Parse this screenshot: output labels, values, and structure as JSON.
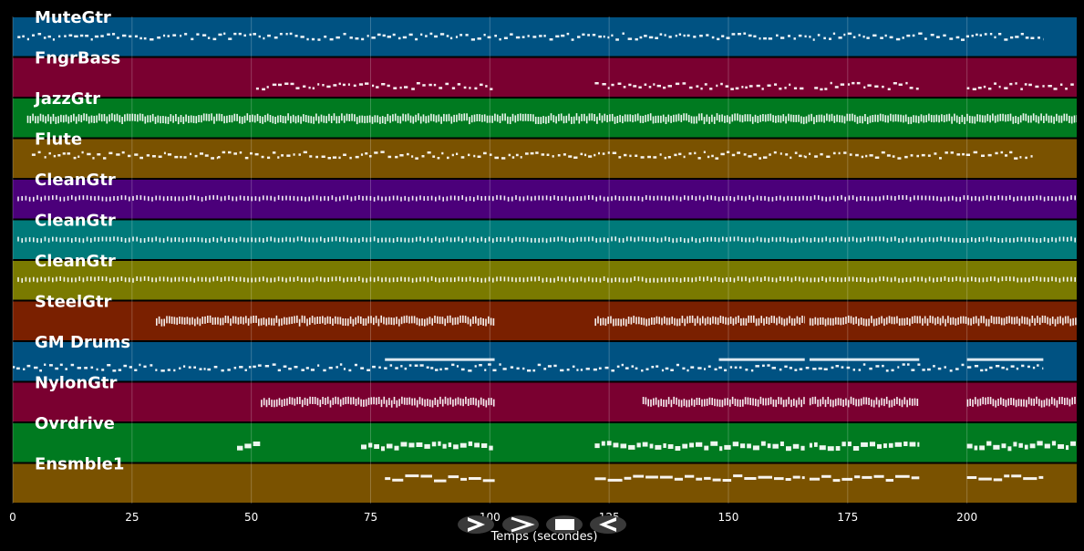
{
  "chart_data": {
    "type": "piano-roll",
    "xlabel": "Temps (secondes)",
    "xlim": [
      0,
      223
    ],
    "xticks": [
      0,
      25,
      50,
      75,
      100,
      125,
      150,
      175,
      200
    ],
    "grid": true,
    "series": [
      {
        "name": "MuteGtr",
        "color": "#005282",
        "pattern": "dots",
        "style": "dash",
        "level": 0.5,
        "segments": [
          [
            1,
            216
          ]
        ]
      },
      {
        "name": "FngrBass",
        "color": "#7a0030",
        "pattern": "dots",
        "style": "dash",
        "level": 0.72,
        "segments": [
          [
            51,
            101
          ],
          [
            122,
            166
          ],
          [
            168,
            190
          ],
          [
            200,
            223
          ]
        ]
      },
      {
        "name": "JazzGtr",
        "color": "#007a20",
        "pattern": "dense",
        "style": "dense",
        "level": 0.52,
        "segments": [
          [
            3,
            223
          ]
        ]
      },
      {
        "name": "Flute",
        "color": "#7a5200",
        "pattern": "dots",
        "style": "dash",
        "level": 0.42,
        "segments": [
          [
            4,
            43
          ],
          [
            43,
            101
          ],
          [
            101,
            166
          ],
          [
            166,
            214
          ]
        ]
      },
      {
        "name": "CleanGtr",
        "color": "#4b007a",
        "pattern": "ticks",
        "style": "ticks",
        "level": 0.48,
        "segments": [
          [
            1,
            223
          ]
        ]
      },
      {
        "name": "CleanGtr",
        "color": "#007a7a",
        "pattern": "ticks",
        "style": "ticks",
        "level": 0.5,
        "segments": [
          [
            1,
            223
          ]
        ]
      },
      {
        "name": "CleanGtr",
        "color": "#7a7a00",
        "pattern": "ticks",
        "style": "ticks",
        "level": 0.48,
        "segments": [
          [
            1,
            223
          ]
        ]
      },
      {
        "name": "SteelGtr",
        "color": "#7a2000",
        "pattern": "dense",
        "style": "dense",
        "level": 0.5,
        "segments": [
          [
            30,
            101
          ],
          [
            122,
            166
          ],
          [
            167,
            223
          ]
        ]
      },
      {
        "name": "GM Drums",
        "color": "#005282",
        "pattern": "dots",
        "style": "drums",
        "level": 0.65,
        "segments": [
          [
            0,
            216
          ]
        ]
      },
      {
        "name": "NylonGtr",
        "color": "#7a0030",
        "pattern": "dense",
        "style": "dense",
        "level": 0.5,
        "segments": [
          [
            52,
            101
          ],
          [
            132,
            166
          ],
          [
            167,
            190
          ],
          [
            200,
            223
          ]
        ]
      },
      {
        "name": "Ovrdrive",
        "color": "#007a20",
        "pattern": "blocks",
        "style": "blocks",
        "level": 0.58,
        "segments": [
          [
            47,
            52
          ],
          [
            73,
            101
          ],
          [
            122,
            166
          ],
          [
            167,
            190
          ],
          [
            200,
            223
          ]
        ]
      },
      {
        "name": "Ensmble1",
        "color": "#7a5200",
        "pattern": "dash",
        "style": "long",
        "level": 0.38,
        "segments": [
          [
            78,
            101
          ],
          [
            122,
            166
          ],
          [
            167,
            190
          ],
          [
            200,
            216
          ]
        ]
      }
    ]
  },
  "controls": {
    "play_label": "▷",
    "forward_label": ">",
    "stop_label": "■",
    "back_label": "◁"
  }
}
